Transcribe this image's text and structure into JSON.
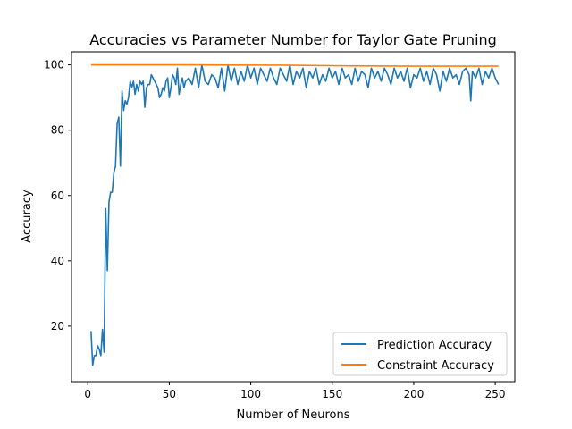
{
  "chart_data": {
    "type": "line",
    "title": "Accuracies vs Parameter Number for Taylor Gate Pruning",
    "xlabel": "Number of Neurons",
    "ylabel": "Accuracy",
    "xlim": [
      -10,
      262
    ],
    "ylim": [
      3,
      104
    ],
    "x_ticks": [
      0,
      50,
      100,
      150,
      200,
      250
    ],
    "y_ticks": [
      20,
      40,
      60,
      80,
      100
    ],
    "x_tick_labels": [
      "0",
      "50",
      "100",
      "150",
      "200",
      "250"
    ],
    "y_tick_labels": [
      "20",
      "40",
      "60",
      "80",
      "100"
    ],
    "grid": false,
    "legend_position": "lower right",
    "colors": {
      "prediction": "#1f77b4",
      "constraint": "#ff7f0e"
    },
    "x_range": {
      "start": 2,
      "end": 252,
      "step": 1
    },
    "series": [
      {
        "name": "Prediction Accuracy",
        "color": "#1f77b4",
        "x": [
          2,
          3,
          4,
          5,
          6,
          7,
          8,
          9,
          10,
          11,
          12,
          13,
          14,
          15,
          16,
          17,
          18,
          19,
          20,
          21,
          22,
          23,
          24,
          25,
          26,
          27,
          28,
          29,
          30,
          31,
          32,
          33,
          34,
          35,
          36,
          37,
          38,
          39,
          40,
          41,
          42,
          43,
          44,
          45,
          46,
          47,
          48,
          49,
          50,
          51,
          52,
          53,
          54,
          55,
          56,
          57,
          58,
          59,
          60,
          62,
          64,
          66,
          68,
          70,
          72,
          74,
          76,
          78,
          80,
          82,
          84,
          86,
          88,
          90,
          92,
          94,
          96,
          98,
          100,
          102,
          104,
          106,
          108,
          110,
          112,
          114,
          116,
          118,
          120,
          122,
          124,
          126,
          128,
          130,
          132,
          134,
          136,
          138,
          140,
          142,
          144,
          146,
          148,
          150,
          152,
          154,
          156,
          158,
          160,
          162,
          164,
          166,
          168,
          170,
          172,
          174,
          176,
          178,
          180,
          182,
          184,
          186,
          188,
          190,
          192,
          194,
          196,
          198,
          200,
          202,
          204,
          206,
          208,
          210,
          212,
          214,
          216,
          218,
          220,
          222,
          224,
          226,
          228,
          230,
          232,
          234,
          235,
          236,
          238,
          240,
          242,
          244,
          246,
          248,
          250,
          252
        ],
        "y": [
          18.5,
          8,
          11,
          11,
          14,
          13,
          11,
          19,
          12,
          56,
          37,
          58,
          61,
          61,
          67,
          69,
          82,
          84,
          69,
          92,
          86,
          89,
          88,
          90,
          95,
          93,
          95,
          91,
          94,
          92,
          95,
          94,
          95,
          87,
          93,
          94,
          94,
          97,
          96,
          95,
          94,
          93,
          90,
          91,
          93,
          92,
          95,
          96,
          90,
          93,
          97,
          96,
          94,
          99,
          91,
          94,
          96,
          93,
          95,
          96,
          94,
          99,
          93,
          100,
          95,
          94,
          97,
          96,
          93,
          99,
          92,
          100,
          95,
          99,
          94,
          98,
          95,
          100,
          96,
          99,
          94,
          99,
          97,
          95,
          99,
          96,
          94,
          99,
          97,
          95,
          100,
          94,
          98,
          96,
          99,
          93,
          98,
          96,
          99,
          94,
          97,
          95,
          99,
          96,
          98,
          94,
          99,
          96,
          97,
          94,
          99,
          95,
          98,
          97,
          93,
          99,
          96,
          98,
          95,
          99,
          97,
          94,
          99,
          96,
          98,
          95,
          99,
          93,
          97,
          96,
          99,
          95,
          98,
          94,
          99,
          97,
          92,
          98,
          95,
          99,
          96,
          97,
          94,
          98,
          99,
          97,
          89,
          98,
          96,
          99,
          94,
          98,
          96,
          99,
          96,
          94
        ]
      },
      {
        "name": "Constraint Accuracy",
        "color": "#ff7f0e",
        "x": [
          2,
          60,
          120,
          160,
          200,
          252
        ],
        "y": [
          100,
          100,
          99.9,
          99.7,
          99.6,
          99.6
        ]
      }
    ]
  }
}
